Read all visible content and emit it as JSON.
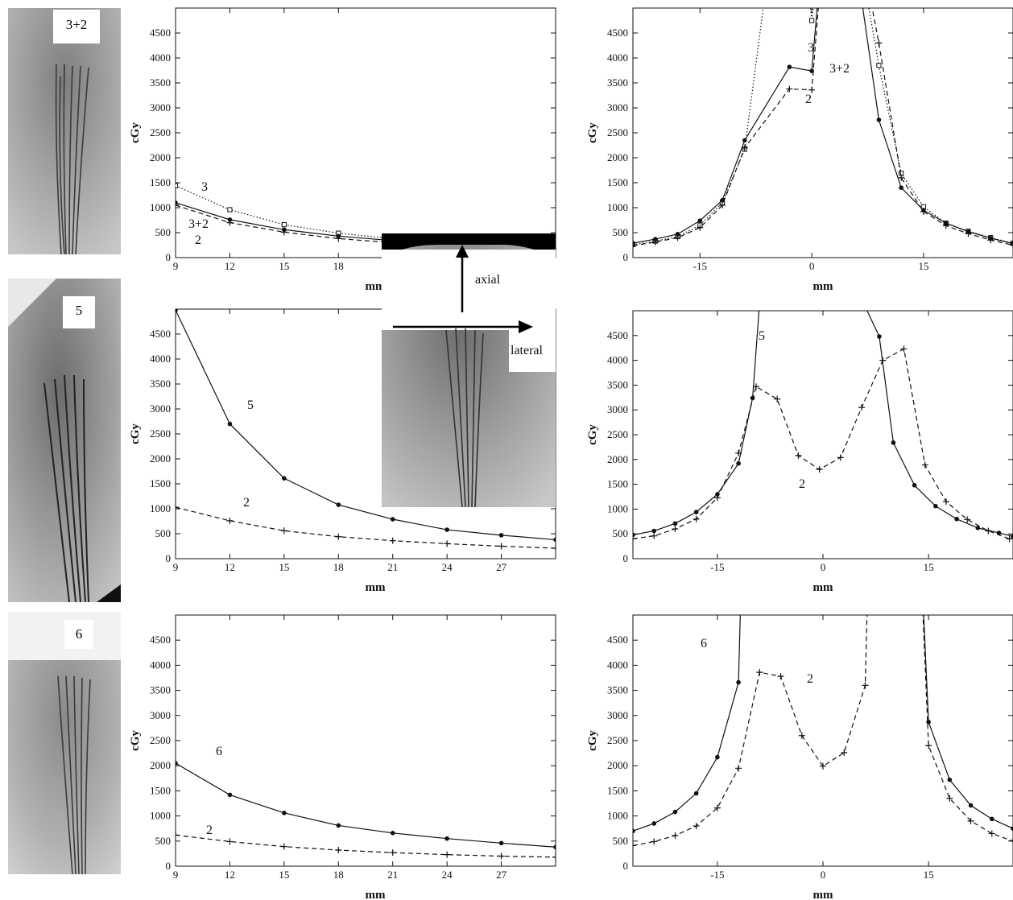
{
  "figure": {
    "xray_labels": [
      "3+2",
      "5",
      "6"
    ],
    "inset": {
      "axial_label": "axial",
      "lateral_label": "lateral"
    }
  },
  "chart_data": [
    {
      "type": "line",
      "id": "r1_axial",
      "xlabel": "mm",
      "ylabel": "cGy",
      "xlim": [
        9,
        30
      ],
      "ylim": [
        0,
        5000
      ],
      "xticks": [
        9,
        12,
        15,
        18
      ],
      "yticks": [
        0,
        500,
        1000,
        1500,
        2000,
        2500,
        3000,
        3500,
        4000,
        4500
      ],
      "series": [
        {
          "name": "3",
          "style": "dotted",
          "marker": "square",
          "x": [
            9,
            12,
            15,
            18,
            21
          ],
          "y": [
            1440,
            960,
            660,
            490,
            380
          ]
        },
        {
          "name": "3+2",
          "style": "solid",
          "marker": "dot",
          "x": [
            9,
            12,
            15,
            18,
            21
          ],
          "y": [
            1100,
            760,
            560,
            430,
            340
          ]
        },
        {
          "name": "2",
          "style": "dashed",
          "marker": "plus",
          "x": [
            9,
            12,
            15,
            18,
            21
          ],
          "y": [
            1050,
            700,
            510,
            380,
            300
          ]
        }
      ]
    },
    {
      "type": "line",
      "id": "r1_lateral",
      "xlabel": "mm",
      "ylabel": "cGy",
      "xlim": [
        -24,
        27
      ],
      "ylim": [
        0,
        5000
      ],
      "xticks": [
        -15,
        0,
        15
      ],
      "yticks": [
        0,
        500,
        1000,
        1500,
        2000,
        2500,
        3000,
        3500,
        4000,
        4500
      ],
      "series": [
        {
          "name": "3",
          "style": "dotted",
          "marker": "square",
          "x": [
            -24,
            -21,
            -18,
            -15,
            -12,
            -9,
            -3,
            0,
            3,
            9,
            12,
            15,
            18,
            21,
            24,
            27
          ],
          "y": [
            260,
            330,
            420,
            650,
            1100,
            2170,
            9000,
            4750,
            9000,
            3850,
            1690,
            1020,
            690,
            530,
            400,
            290
          ]
        },
        {
          "name": "3+2",
          "style": "solid",
          "marker": "dot",
          "x": [
            -24,
            -21,
            -18,
            -15,
            -12,
            -9,
            -3,
            0,
            3,
            9,
            12,
            15,
            18,
            21,
            24,
            27
          ],
          "y": [
            290,
            370,
            470,
            740,
            1150,
            2350,
            3820,
            3740,
            9000,
            2760,
            1400,
            950,
            690,
            520,
            390,
            280
          ]
        },
        {
          "name": "2",
          "style": "dashed",
          "marker": "plus",
          "x": [
            -24,
            -21,
            -18,
            -15,
            -12,
            -9,
            -3,
            0,
            3,
            9,
            12,
            15,
            18,
            21,
            24,
            27
          ],
          "y": [
            240,
            310,
            400,
            600,
            1050,
            2200,
            3380,
            3360,
            9000,
            4300,
            1600,
            920,
            640,
            480,
            350,
            250
          ]
        }
      ]
    },
    {
      "type": "line",
      "id": "r2_axial",
      "xlabel": "mm",
      "ylabel": "cGy",
      "xlim": [
        9,
        30
      ],
      "ylim": [
        0,
        5000
      ],
      "xticks": [
        9,
        12,
        15,
        18,
        21,
        24,
        27
      ],
      "yticks": [
        0,
        500,
        1000,
        1500,
        2000,
        2500,
        3000,
        3500,
        4000,
        4500
      ],
      "series": [
        {
          "name": "5",
          "style": "solid",
          "marker": "dot",
          "x": [
            9,
            12,
            15,
            18,
            21,
            24,
            27,
            30
          ],
          "y": [
            4980,
            2700,
            1610,
            1080,
            790,
            580,
            470,
            380
          ]
        },
        {
          "name": "2",
          "style": "dashed",
          "marker": "plus",
          "x": [
            9,
            12,
            15,
            18,
            21,
            24,
            27,
            30
          ],
          "y": [
            1030,
            760,
            560,
            440,
            360,
            300,
            250,
            210
          ]
        }
      ]
    },
    {
      "type": "line",
      "id": "r2_lateral",
      "xlabel": "mm",
      "ylabel": "cGy",
      "xlim": [
        -27,
        27
      ],
      "ylim": [
        0,
        5000
      ],
      "xticks": [
        -15,
        0,
        15
      ],
      "yticks": [
        0,
        500,
        1000,
        1500,
        2000,
        2500,
        3000,
        3500,
        4000,
        4500
      ],
      "series": [
        {
          "name": "5",
          "style": "solid",
          "marker": "dot",
          "x": [
            -27,
            -24,
            -21,
            -18,
            -15,
            -12,
            -10,
            -7,
            8,
            10,
            13,
            16,
            19,
            22,
            25,
            27
          ],
          "y": [
            480,
            560,
            710,
            940,
            1300,
            1920,
            3240,
            9000,
            4480,
            2340,
            1480,
            1060,
            800,
            620,
            520,
            450
          ]
        },
        {
          "name": "2",
          "style": "dashed",
          "marker": "plus",
          "x": [
            -27,
            -24,
            -21,
            -18,
            -15,
            -12,
            -9.5,
            -6.5,
            -3.5,
            -0.5,
            2.5,
            5.5,
            8.5,
            11.5,
            14.5,
            17.5,
            20.5,
            23.5,
            26.5
          ],
          "y": [
            400,
            460,
            600,
            800,
            1230,
            2130,
            3470,
            3220,
            2080,
            1800,
            2040,
            3050,
            4000,
            4230,
            1890,
            1150,
            790,
            560,
            400
          ]
        }
      ]
    },
    {
      "type": "line",
      "id": "r3_axial",
      "xlabel": "mm",
      "ylabel": "cGy",
      "xlim": [
        9,
        30
      ],
      "ylim": [
        0,
        5000
      ],
      "xticks": [
        9,
        12,
        15,
        18,
        21,
        24,
        27
      ],
      "yticks": [
        0,
        500,
        1000,
        1500,
        2000,
        2500,
        3000,
        3500,
        4000,
        4500
      ],
      "series": [
        {
          "name": "6",
          "style": "solid",
          "marker": "dot",
          "x": [
            9,
            12,
            15,
            18,
            21,
            24,
            27,
            30
          ],
          "y": [
            2050,
            1420,
            1060,
            810,
            660,
            550,
            460,
            380
          ]
        },
        {
          "name": "2",
          "style": "dashed",
          "marker": "plus",
          "x": [
            9,
            12,
            15,
            18,
            21,
            24,
            27,
            30
          ],
          "y": [
            620,
            490,
            390,
            320,
            270,
            230,
            200,
            180
          ]
        }
      ]
    },
    {
      "type": "line",
      "id": "r3_lateral",
      "xlabel": "mm",
      "ylabel": "cGy",
      "xlim": [
        -27,
        27
      ],
      "ylim": [
        0,
        5000
      ],
      "xticks": [
        -15,
        0,
        15
      ],
      "yticks": [
        0,
        500,
        1000,
        1500,
        2000,
        2500,
        3000,
        3500,
        4000,
        4500
      ],
      "series": [
        {
          "name": "6",
          "style": "solid",
          "marker": "dot",
          "x": [
            -27,
            -24,
            -21,
            -18,
            -15,
            -12,
            -11,
            13,
            15,
            18,
            21,
            24,
            27
          ],
          "y": [
            700,
            850,
            1080,
            1450,
            2170,
            3660,
            9000,
            9000,
            2870,
            1720,
            1210,
            940,
            750
          ]
        },
        {
          "name": "2",
          "style": "dashed",
          "marker": "plus",
          "x": [
            -27,
            -24,
            -21,
            -18,
            -15,
            -12,
            -9,
            -6,
            -3,
            0,
            3,
            6,
            7,
            13,
            15,
            18,
            21,
            24,
            27
          ],
          "y": [
            410,
            490,
            610,
            800,
            1160,
            1950,
            3860,
            3780,
            2600,
            1990,
            2260,
            3600,
            9000,
            9000,
            2400,
            1350,
            900,
            650,
            500
          ]
        }
      ]
    }
  ],
  "curve_labels": [
    {
      "chart": "r1_axial",
      "series": "3"
    },
    {
      "chart": "r1_axial",
      "series": "3+2"
    },
    {
      "chart": "r1_axial",
      "series": "2"
    },
    {
      "chart": "r1_lateral",
      "series": "3"
    },
    {
      "chart": "r1_lateral",
      "series": "3+2"
    },
    {
      "chart": "r1_lateral",
      "series": "2"
    },
    {
      "chart": "r2_axial",
      "series": "5"
    },
    {
      "chart": "r2_axial",
      "series": "2"
    },
    {
      "chart": "r2_lateral",
      "series": "5"
    },
    {
      "chart": "r2_lateral",
      "series": "2"
    },
    {
      "chart": "r3_axial",
      "series": "6"
    },
    {
      "chart": "r3_axial",
      "series": "2"
    },
    {
      "chart": "r3_lateral",
      "series": "6"
    },
    {
      "chart": "r3_lateral",
      "series": "2"
    }
  ]
}
